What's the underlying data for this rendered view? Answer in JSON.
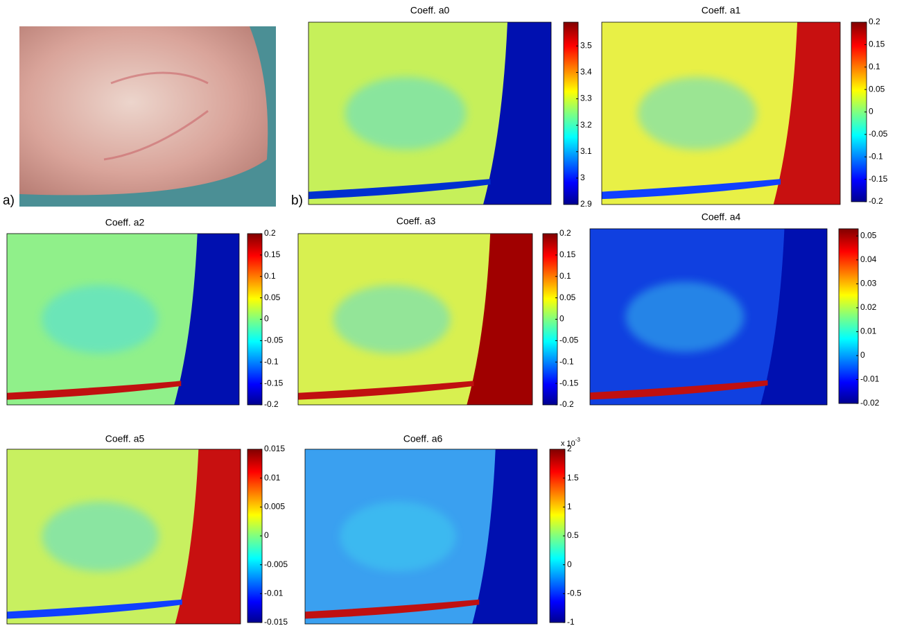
{
  "labels": {
    "a": "a)",
    "b": "b)"
  },
  "chart_data": [
    {
      "type": "heatmap",
      "title": "Coeff. a0",
      "clim": [
        2.9,
        3.59
      ],
      "cticks": [
        2.9,
        3,
        3.1,
        3.2,
        3.3,
        3.4,
        3.5
      ]
    },
    {
      "type": "heatmap",
      "title": "Coeff. a1",
      "clim": [
        -0.2,
        0.2
      ],
      "cticks": [
        -0.2,
        -0.15,
        -0.1,
        -0.05,
        0,
        0.05,
        0.1,
        0.15,
        0.2
      ]
    },
    {
      "type": "heatmap",
      "title": "Coeff. a2",
      "clim": [
        -0.2,
        0.2
      ],
      "cticks": [
        -0.2,
        -0.15,
        -0.1,
        -0.05,
        0,
        0.05,
        0.1,
        0.15,
        0.2
      ]
    },
    {
      "type": "heatmap",
      "title": "Coeff. a3",
      "clim": [
        -0.2,
        0.2
      ],
      "cticks": [
        -0.2,
        -0.15,
        -0.1,
        -0.05,
        0,
        0.05,
        0.1,
        0.15,
        0.2
      ]
    },
    {
      "type": "heatmap",
      "title": "Coeff. a4",
      "clim": [
        -0.02,
        0.053
      ],
      "cticks": [
        -0.02,
        -0.01,
        0,
        0.01,
        0.02,
        0.03,
        0.04,
        0.05
      ]
    },
    {
      "type": "heatmap",
      "title": "Coeff. a5",
      "clim": [
        -0.015,
        0.015
      ],
      "cticks": [
        -0.015,
        -0.01,
        -0.005,
        0,
        0.005,
        0.01,
        0.015
      ]
    },
    {
      "type": "heatmap",
      "title": "Coeff. a6",
      "clim": [
        -1,
        2
      ],
      "cticks": [
        -1,
        -0.5,
        0,
        0.5,
        1,
        1.5,
        2
      ],
      "scale_label": {
        "base": "x 10",
        "exponent": "-3"
      }
    }
  ]
}
